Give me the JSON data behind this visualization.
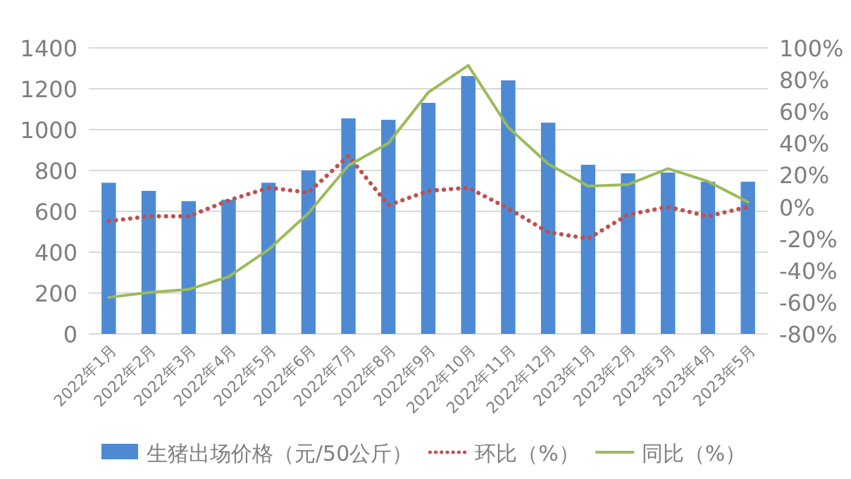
{
  "chart_data": {
    "type": "bar",
    "categories": [
      "2022年1月",
      "2022年2月",
      "2022年3月",
      "2022年4月",
      "2022年5月",
      "2022年6月",
      "2022年7月",
      "2022年8月",
      "2022年9月",
      "2022年10月",
      "2022年11月",
      "2022年12月",
      "2023年1月",
      "2023年2月",
      "2023年3月",
      "2023年4月",
      "2023年5月"
    ],
    "series": [
      {
        "name": "生猪出场价格（元/50公斤）",
        "color": "#4e8ad4",
        "values": [
          740,
          700,
          650,
          657,
          740,
          800,
          1055,
          1048,
          1131,
          1262,
          1241,
          1034,
          828,
          786,
          790,
          745,
          745
        ]
      },
      {
        "name": "环比（%）",
        "type": "line",
        "axis": "y2",
        "line_style": "dotted",
        "color": "#c0504d",
        "values": [
          -9,
          -6,
          -6,
          4,
          12,
          9,
          32,
          1,
          10,
          12,
          -1,
          -16,
          -20,
          -5,
          0,
          -6,
          0
        ]
      },
      {
        "name": "同比（%）",
        "type": "line",
        "axis": "y2",
        "line_style": "solid",
        "color": "#9bbb59",
        "values": [
          -57,
          -54,
          -52,
          -44,
          -27,
          -4,
          26,
          40,
          72,
          89,
          50,
          27,
          13,
          14,
          24,
          16,
          3
        ]
      }
    ],
    "ylim": [
      0,
      1400
    ],
    "yticks": [
      0,
      200,
      400,
      600,
      800,
      1000,
      1200,
      1400
    ],
    "y2lim": [
      -80,
      100
    ],
    "y2ticks": [
      {
        "value": -80,
        "label": "-80%"
      },
      {
        "value": -60,
        "label": "-60%"
      },
      {
        "value": -40,
        "label": "-40%"
      },
      {
        "value": -20,
        "label": "-20%"
      },
      {
        "value": 0,
        "label": "0%"
      },
      {
        "value": 20,
        "label": "20%"
      },
      {
        "value": 40,
        "label": "40%"
      },
      {
        "value": 60,
        "label": "60%"
      },
      {
        "value": 80,
        "label": "80%"
      },
      {
        "value": 100,
        "label": "100%"
      }
    ],
    "grid": "y",
    "legend": "bottom",
    "marker": "none"
  }
}
